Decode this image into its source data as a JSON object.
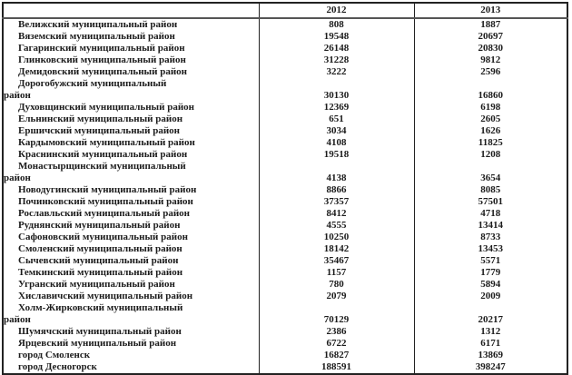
{
  "table": {
    "columns": {
      "name_header": "",
      "year1": "2012",
      "year2": "2013"
    },
    "rows": [
      {
        "district": "Велижский муниципальный район",
        "v2012": "808",
        "v2013": "1887"
      },
      {
        "district": "Вяземский муниципальный район",
        "v2012": "19548",
        "v2013": "20697"
      },
      {
        "district": "Гагаринский муниципальный район",
        "v2012": "26148",
        "v2013": "20830"
      },
      {
        "district": "Глинковский муниципальный район",
        "v2012": "31228",
        "v2013": "9812"
      },
      {
        "district": "Демидовский муниципальный район",
        "v2012": "3222",
        "v2013": "2596"
      },
      {
        "district": "Дорогобужский муниципальный\nрайон",
        "v2012": "30130",
        "v2013": "16860"
      },
      {
        "district": "Духовщинский муниципальный район",
        "v2012": "12369",
        "v2013": "6198"
      },
      {
        "district": "Ельнинский муниципальный район",
        "v2012": "651",
        "v2013": "2605"
      },
      {
        "district": "Ершичский муниципальный район",
        "v2012": "3034",
        "v2013": "1626"
      },
      {
        "district": "Кардымовский муниципальный район",
        "v2012": "4108",
        "v2013": "11825"
      },
      {
        "district": "Краснинский муниципальный район",
        "v2012": "19518",
        "v2013": "1208"
      },
      {
        "district": "Монастырщинский муниципальный\nрайон",
        "v2012": "4138",
        "v2013": "3654"
      },
      {
        "district": "Новодугинский муниципальный район",
        "v2012": "8866",
        "v2013": "8085"
      },
      {
        "district": "Починковский муниципальный район",
        "v2012": "37357",
        "v2013": "57501"
      },
      {
        "district": "Рославльский муниципальный район",
        "v2012": "8412",
        "v2013": "4718"
      },
      {
        "district": "Руднянский муниципальный район",
        "v2012": "4555",
        "v2013": "13414"
      },
      {
        "district": "Сафоновский муниципальный район",
        "v2012": "10250",
        "v2013": "8733"
      },
      {
        "district": "Смоленский муниципальный район",
        "v2012": "18142",
        "v2013": "13453"
      },
      {
        "district": "Сычевский муниципальный район",
        "v2012": "35467",
        "v2013": "5571"
      },
      {
        "district": "Темкинский муниципальный район",
        "v2012": "1157",
        "v2013": "1779"
      },
      {
        "district": "Угранский муниципальный район",
        "v2012": "780",
        "v2013": "5894"
      },
      {
        "district": "Хиславичский муниципальный район",
        "v2012": "2079",
        "v2013": "2009"
      },
      {
        "district": "Холм-Жирковский муниципальный\nрайон",
        "v2012": "70129",
        "v2013": "20217"
      },
      {
        "district": "Шумячский муниципальный район",
        "v2012": "2386",
        "v2013": "1312"
      },
      {
        "district": "Ярцевский муниципальный район",
        "v2012": "6722",
        "v2013": "6171"
      },
      {
        "district": "город Смоленск",
        "v2012": "16827",
        "v2013": "13869"
      },
      {
        "district": "город Десногорск",
        "v2012": "188591",
        "v2013": "398247"
      }
    ]
  }
}
